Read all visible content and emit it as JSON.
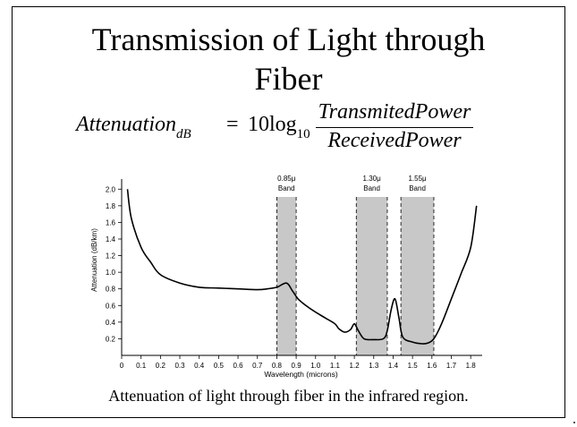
{
  "slide": {
    "title_line1": "Transmission of Light through",
    "title_line2": "Fiber",
    "caption": "Attenuation of light through fiber in the infrared region."
  },
  "formula": {
    "lhs": "Attenuation",
    "lhs_sub": "dB",
    "equals": "=",
    "coef": "10",
    "log": "log",
    "log_sub": "10",
    "numerator": "TransmitedPower",
    "denominator": "ReceivedPower"
  },
  "chart_data": {
    "type": "line",
    "xlabel": "Wavelength (microns)",
    "ylabel": "Attenuation (dB/km)",
    "xlim": [
      0.0,
      1.85
    ],
    "ylim": [
      0.0,
      2.1
    ],
    "x_ticks": [
      "0",
      "0.1",
      "0.2",
      "0.3",
      "0.4",
      "0.5",
      "0.6",
      "0.7",
      "0.8",
      "0.9",
      "1.0",
      "1.1",
      "1.2",
      "1.3",
      "1.4",
      "1.5",
      "1.6",
      "1.7",
      "1.8"
    ],
    "y_ticks": [
      "0.2",
      "0.4",
      "0.6",
      "0.8",
      "1.0",
      "1.2",
      "1.4",
      "1.6",
      "1.8",
      "2.0"
    ],
    "bands": [
      {
        "label_top": "0.85μ",
        "label_bottom": "Band",
        "start": 0.8,
        "end": 0.9
      },
      {
        "label_top": "1.30μ",
        "label_bottom": "Band",
        "start": 1.21,
        "end": 1.37
      },
      {
        "label_top": "1.55μ",
        "label_bottom": "Band",
        "start": 1.44,
        "end": 1.61
      }
    ],
    "series": [
      {
        "x": [
          0.03,
          0.05,
          0.1,
          0.15,
          0.2,
          0.3,
          0.4,
          0.5,
          0.6,
          0.7,
          0.75,
          0.8,
          0.85,
          0.88,
          0.91,
          0.95,
          1.0,
          1.05,
          1.1,
          1.12,
          1.15,
          1.18,
          1.2,
          1.22,
          1.25,
          1.3,
          1.35,
          1.37,
          1.39,
          1.41,
          1.43,
          1.45,
          1.5,
          1.55,
          1.58,
          1.61,
          1.65,
          1.7,
          1.75,
          1.8,
          1.83
        ],
        "y": [
          2.0,
          1.65,
          1.3,
          1.12,
          0.97,
          0.87,
          0.82,
          0.81,
          0.8,
          0.79,
          0.8,
          0.82,
          0.87,
          0.78,
          0.68,
          0.6,
          0.52,
          0.45,
          0.38,
          0.32,
          0.28,
          0.31,
          0.38,
          0.3,
          0.2,
          0.19,
          0.2,
          0.3,
          0.55,
          0.68,
          0.45,
          0.22,
          0.16,
          0.14,
          0.15,
          0.2,
          0.38,
          0.68,
          0.98,
          1.3,
          1.8
        ]
      }
    ],
    "colors": {
      "band_fill": "#c8c8c8",
      "line": "#000000"
    }
  }
}
